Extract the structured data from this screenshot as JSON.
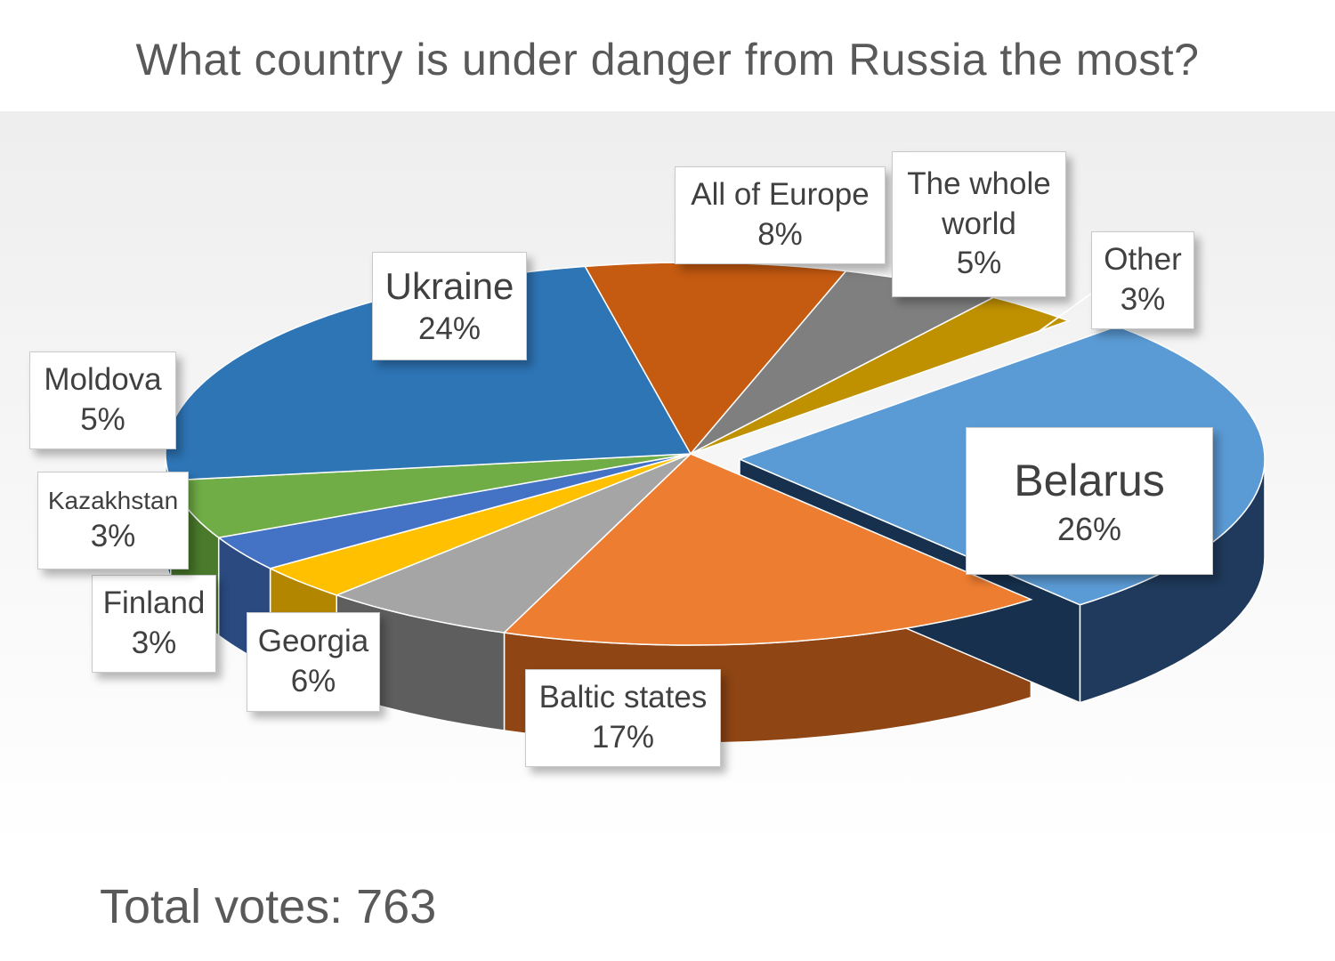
{
  "title": "What country is under danger from Russia the most?",
  "total_votes_label": "Total votes: 763",
  "chart_data": {
    "type": "pie",
    "title": "What country is under danger from Russia the most?",
    "start_angle_deg": -44,
    "exploded": "Belarus",
    "slices": [
      {
        "label": "Belarus",
        "value_label": "26%",
        "value": 26,
        "color": "#5b9bd5",
        "side": "#1f3a5c"
      },
      {
        "label": "Baltic states",
        "value_label": "17%",
        "value": 17,
        "color": "#ed7d31",
        "side": "#8f4514"
      },
      {
        "label": "Georgia",
        "value_label": "6%",
        "value": 6,
        "color": "#a5a5a5",
        "side": "#5e5e5e"
      },
      {
        "label": "Finland",
        "value_label": "3%",
        "value": 3,
        "color": "#ffc000",
        "side": "#b38600"
      },
      {
        "label": "Kazakhstan",
        "value_label": "3%",
        "value": 3,
        "color": "#4472c4",
        "side": "#2a4a80"
      },
      {
        "label": "Moldova",
        "value_label": "5%",
        "value": 5,
        "color": "#70ad47",
        "side": "#4a7a2c"
      },
      {
        "label": "Ukraine",
        "value_label": "24%",
        "value": 24,
        "color": "#2e75b6",
        "side": "#1b4670"
      },
      {
        "label": "All of Europe",
        "value_label": "8%",
        "value": 8,
        "color": "#c55a11",
        "side": "#7a380a"
      },
      {
        "label": "The whole world",
        "value_label": "5%",
        "value": 5,
        "color": "#7f7f7f",
        "side": "#4d4d4d"
      },
      {
        "label": "Other",
        "value_label": "3%",
        "value": 3,
        "color": "#bf9000",
        "side": "#7a5c00"
      }
    ]
  },
  "labels": [
    {
      "key": "Belarus",
      "lines": [
        "Belarus",
        "26%"
      ]
    },
    {
      "key": "Baltic states",
      "lines": [
        "Baltic states",
        "17%"
      ]
    },
    {
      "key": "Georgia",
      "lines": [
        "Georgia",
        "6%"
      ]
    },
    {
      "key": "Finland",
      "lines": [
        "Finland",
        "3%"
      ]
    },
    {
      "key": "Kazakhstan",
      "lines": [
        "Kazakhstan",
        "3%"
      ]
    },
    {
      "key": "Moldova",
      "lines": [
        "Moldova",
        "5%"
      ]
    },
    {
      "key": "Ukraine",
      "lines": [
        "Ukraine",
        "24%"
      ]
    },
    {
      "key": "All of Europe",
      "lines": [
        "All of Europe",
        "8%"
      ]
    },
    {
      "key": "The whole world",
      "lines": [
        "The whole",
        "world",
        "5%"
      ]
    },
    {
      "key": "Other",
      "lines": [
        "Other",
        "3%"
      ]
    }
  ]
}
